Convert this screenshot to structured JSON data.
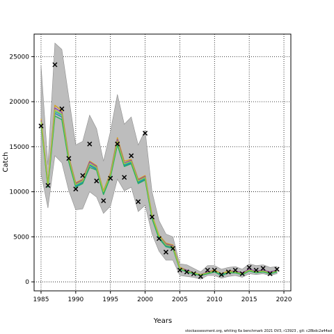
{
  "chart_data": {
    "type": "line",
    "xlabel": "Years",
    "ylabel": "Catch",
    "xlim": [
      1984,
      2021
    ],
    "ylim": [
      -1000,
      27500
    ],
    "xticks": [
      1985,
      1990,
      1995,
      2000,
      2005,
      2010,
      2015,
      2020
    ],
    "yticks": [
      0,
      5000,
      10000,
      15000,
      20000,
      25000
    ],
    "grid": true,
    "x": [
      1985,
      1986,
      1987,
      1988,
      1989,
      1990,
      1991,
      1992,
      1993,
      1994,
      1995,
      1996,
      1997,
      1998,
      1999,
      2000,
      2001,
      2002,
      2003,
      2004,
      2005,
      2006,
      2007,
      2008,
      2009,
      2010,
      2011,
      2012,
      2013,
      2014,
      2015,
      2016,
      2017,
      2018,
      2019
    ],
    "observed": [
      17300,
      10700,
      24100,
      19200,
      13700,
      10300,
      11800,
      15300,
      11200,
      9000,
      11500,
      15300,
      11600,
      14000,
      8900,
      16500,
      7200,
      4800,
      3300,
      3700,
      1300,
      1100,
      900,
      600,
      1300,
      1300,
      800,
      1100,
      1300,
      900,
      1600,
      1300,
      1500,
      900,
      1400
    ],
    "ci_upper": [
      24000,
      13000,
      26500,
      25800,
      20500,
      15200,
      15600,
      18500,
      17000,
      13400,
      16700,
      20800,
      17500,
      18300,
      15200,
      16800,
      10000,
      6800,
      5300,
      5000,
      2000,
      1900,
      1500,
      1100,
      1800,
      1800,
      1400,
      1600,
      1700,
      1400,
      2000,
      1800,
      1900,
      1600,
      1700
    ],
    "ci_lower": [
      12000,
      8200,
      14000,
      13200,
      10100,
      8000,
      8100,
      10000,
      9400,
      7600,
      8400,
      11400,
      10100,
      10500,
      7800,
      8500,
      5300,
      3400,
      2400,
      2400,
      700,
      600,
      500,
      300,
      700,
      700,
      400,
      600,
      700,
      500,
      900,
      800,
      900,
      700,
      900
    ],
    "series": [
      {
        "color": "#d4a020",
        "values": [
          18100,
          11000,
          19600,
          19000,
          13900,
          11000,
          11400,
          13400,
          12900,
          10100,
          12100,
          16000,
          13400,
          13600,
          11400,
          11800,
          7400,
          5200,
          4300,
          4100,
          1600,
          1300,
          1000,
          800,
          1100,
          1300,
          900,
          1200,
          1200,
          1000,
          1400,
          1200,
          1300,
          1100,
          1300
        ]
      },
      {
        "color": "#8e44ad",
        "values": [
          17900,
          10900,
          19300,
          18800,
          13800,
          10900,
          11300,
          13300,
          12800,
          10000,
          12000,
          15800,
          13200,
          13500,
          11300,
          11700,
          7300,
          5100,
          4200,
          4000,
          1500,
          1300,
          1000,
          800,
          1100,
          1200,
          900,
          1100,
          1200,
          1000,
          1400,
          1200,
          1300,
          1100,
          1300
        ]
      },
      {
        "color": "#1abc9c",
        "values": [
          17700,
          10700,
          18900,
          18500,
          13600,
          10700,
          11100,
          13000,
          12600,
          9900,
          11800,
          15500,
          13000,
          13300,
          11100,
          11500,
          7200,
          5000,
          4100,
          3900,
          1500,
          1200,
          900,
          700,
          1000,
          1200,
          800,
          1100,
          1100,
          900,
          1300,
          1100,
          1200,
          1000,
          1200
        ]
      },
      {
        "color": "#2c7fb8",
        "values": [
          17600,
          10600,
          18700,
          18300,
          13500,
          10600,
          11000,
          12900,
          12500,
          9800,
          11700,
          15400,
          12900,
          13200,
          11000,
          11400,
          7100,
          4900,
          4000,
          3800,
          1400,
          1200,
          900,
          700,
          1000,
          1100,
          800,
          1000,
          1100,
          900,
          1300,
          1100,
          1200,
          1000,
          1200
        ]
      },
      {
        "color": "#27ae60",
        "values": [
          17500,
          10500,
          18400,
          18000,
          13300,
          10500,
          10900,
          12700,
          12400,
          9700,
          11600,
          15200,
          12800,
          13100,
          10900,
          11300,
          7000,
          4800,
          3900,
          3700,
          1400,
          1100,
          900,
          700,
          900,
          1100,
          700,
          1000,
          1000,
          800,
          1200,
          1000,
          1100,
          900,
          1100
        ]
      },
      {
        "color": "#a8c83a",
        "values": [
          17800,
          10800,
          19100,
          18600,
          13700,
          10800,
          11200,
          13100,
          12700,
          10000,
          11900,
          15600,
          13100,
          13400,
          11200,
          11600,
          7300,
          5100,
          4100,
          3900,
          1500,
          1200,
          1000,
          800,
          1000,
          1200,
          900,
          1100,
          1100,
          900,
          1300,
          1100,
          1200,
          1000,
          1200
        ]
      }
    ]
  },
  "footer_text": "stockassessment.org,  whiting  6a  benchmark  2021  OV3,  r13923 ,  git:  c28bdc2a44ad"
}
